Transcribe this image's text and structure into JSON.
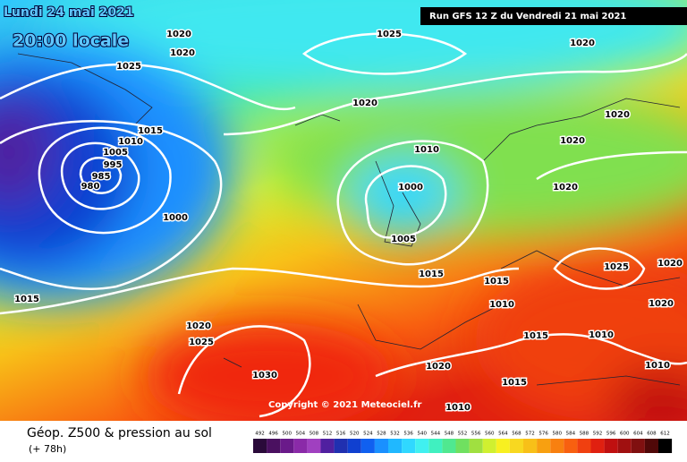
{
  "header": {
    "date": "Lundi 24 mai 2021",
    "time": "20:00 locale",
    "run": "Run GFS 12 Z du Vendredi 21 mai 2021"
  },
  "isobar_labels": [
    "1020",
    "1020",
    "1025",
    "1025",
    "1020",
    "1020",
    "1020",
    "1015",
    "1010",
    "1005",
    "995",
    "985",
    "980",
    "1000",
    "1010",
    "1000",
    "1020",
    "1020",
    "1005",
    "1015",
    "1015",
    "1010",
    "1025",
    "1020",
    "1020",
    "1015",
    "1020",
    "1025",
    "1015",
    "1010",
    "1010",
    "1030",
    "1020",
    "1015",
    "1010"
  ],
  "copyright": "Copyright © 2021 Meteociel.fr",
  "footer": {
    "title": "Géop. Z500 & pression au sol",
    "lead": "(+ 78h)"
  },
  "scale": {
    "labels": [
      492,
      496,
      500,
      504,
      508,
      512,
      516,
      520,
      524,
      528,
      532,
      536,
      540,
      544,
      548,
      552,
      556,
      560,
      564,
      568,
      572,
      576,
      580,
      584,
      588,
      592,
      596,
      600,
      604,
      608,
      612
    ],
    "colors": [
      "#2a0a3a",
      "#4a1060",
      "#6a1a8a",
      "#8a2aa8",
      "#a040c0",
      "#5020a0",
      "#2030b0",
      "#1040d0",
      "#1060f0",
      "#1a90ff",
      "#20b8ff",
      "#30d8ff",
      "#40f0f0",
      "#40f0c0",
      "#50e890",
      "#70e060",
      "#a0e040",
      "#d0f030",
      "#f8f020",
      "#f8d820",
      "#f8c018",
      "#f8a010",
      "#f88010",
      "#f86010",
      "#f04010",
      "#e02010",
      "#c01010",
      "#a01010",
      "#801010",
      "#500808",
      "#000000"
    ]
  }
}
